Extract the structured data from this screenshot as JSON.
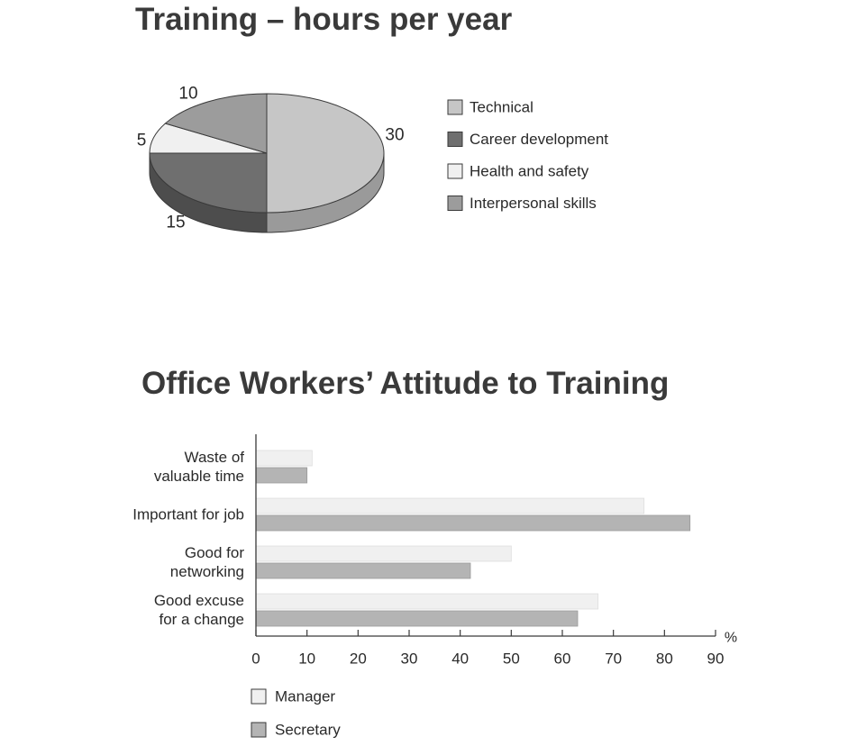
{
  "colors": {
    "title": "#3a3a3a",
    "text": "#2a2a2a",
    "pie_top": [
      "#c6c6c6",
      "#6f6f6f",
      "#f0f0f0",
      "#9c9c9c"
    ],
    "pie_side": [
      "#9a9a9a",
      "#4d4d4d",
      "#cfcfcf",
      "#777777"
    ],
    "manager": "#f0f0f0",
    "secretary": "#b4b4b4",
    "axis": "#3a3a3a"
  },
  "chart_data": [
    {
      "type": "pie",
      "title": "Training – hours per year",
      "categories": [
        "Technical",
        "Career development",
        "Health and safety",
        "Interpersonal skills"
      ],
      "values": [
        30,
        15,
        5,
        10
      ],
      "value_labels": [
        "30",
        "15",
        "5",
        "10"
      ],
      "legend": [
        "Technical",
        "Career development",
        "Health and safety",
        "Interpersonal skills"
      ],
      "legend_position": "right",
      "style": "3d"
    },
    {
      "type": "bar",
      "orientation": "horizontal",
      "title": "Office Workers’ Attitude to Training",
      "categories": [
        [
          "Waste of",
          "valuable time"
        ],
        [
          "Important for job"
        ],
        [
          "Good for",
          "networking"
        ],
        [
          "Good excuse",
          "for a change"
        ]
      ],
      "series": [
        {
          "name": "Manager",
          "values": [
            11,
            76,
            50,
            67
          ]
        },
        {
          "name": "Secretary",
          "values": [
            10,
            85,
            42,
            63
          ]
        }
      ],
      "xlim": [
        0,
        90
      ],
      "xticks": [
        "0",
        "10",
        "20",
        "30",
        "40",
        "50",
        "60",
        "70",
        "80",
        "90"
      ],
      "xunit": "%",
      "grid": false,
      "legend_position": "bottom-left"
    }
  ]
}
